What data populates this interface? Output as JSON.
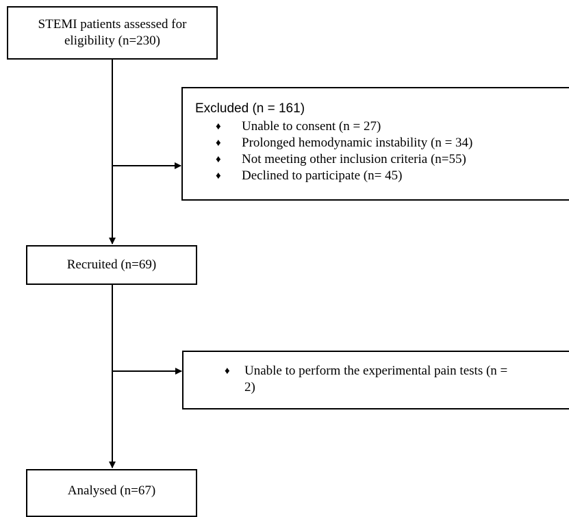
{
  "boxes": {
    "assessed": "STEMI patients assessed for eligibility (n=230)",
    "excluded": {
      "heading": "Excluded (n = 161)",
      "items": [
        "Unable to consent (n = 27)",
        "Prolonged hemodynamic instability (n = 34)",
        "Not meeting other inclusion criteria (n=55)",
        "Declined to participate (n= 45)"
      ]
    },
    "recruited": "Recruited (n=69)",
    "unable": {
      "line1": "Unable to perform the experimental pain tests (n =",
      "line2": "2)"
    },
    "analysed": "Analysed (n=67)"
  },
  "bullet_glyph": "♦"
}
